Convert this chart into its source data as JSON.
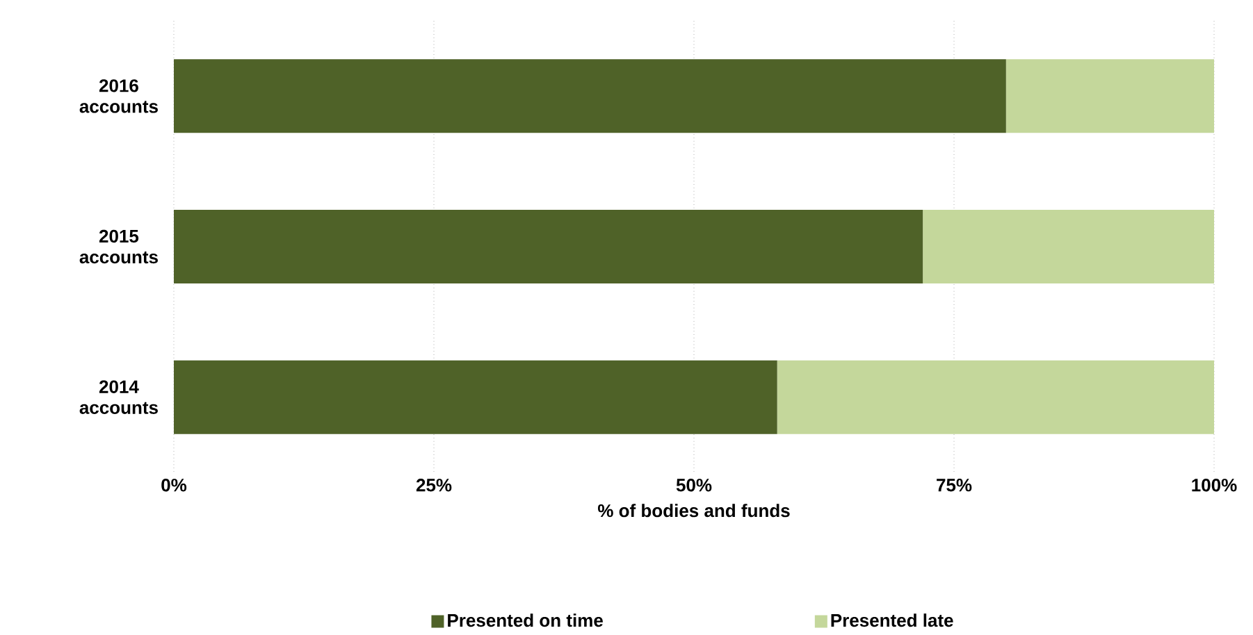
{
  "chart_data": {
    "type": "bar",
    "orientation": "horizontal",
    "stacked": true,
    "xlabel": "% of bodies and funds",
    "categories": [
      "2016 accounts",
      "2015 accounts",
      "2014 accounts"
    ],
    "series": [
      {
        "name": "Presented on time",
        "color": "#4f6228",
        "values": [
          80,
          72,
          58
        ]
      },
      {
        "name": "Presented late",
        "color": "#c4d79b",
        "values": [
          20,
          28,
          42
        ]
      }
    ],
    "xlim": [
      0,
      100
    ],
    "xticks": [
      {
        "value": 0,
        "label": "0%"
      },
      {
        "value": 25,
        "label": "25%"
      },
      {
        "value": 50,
        "label": "50%"
      },
      {
        "value": 75,
        "label": "75%"
      },
      {
        "value": 100,
        "label": "100%"
      }
    ],
    "grid": "x",
    "legend": "bottom"
  }
}
